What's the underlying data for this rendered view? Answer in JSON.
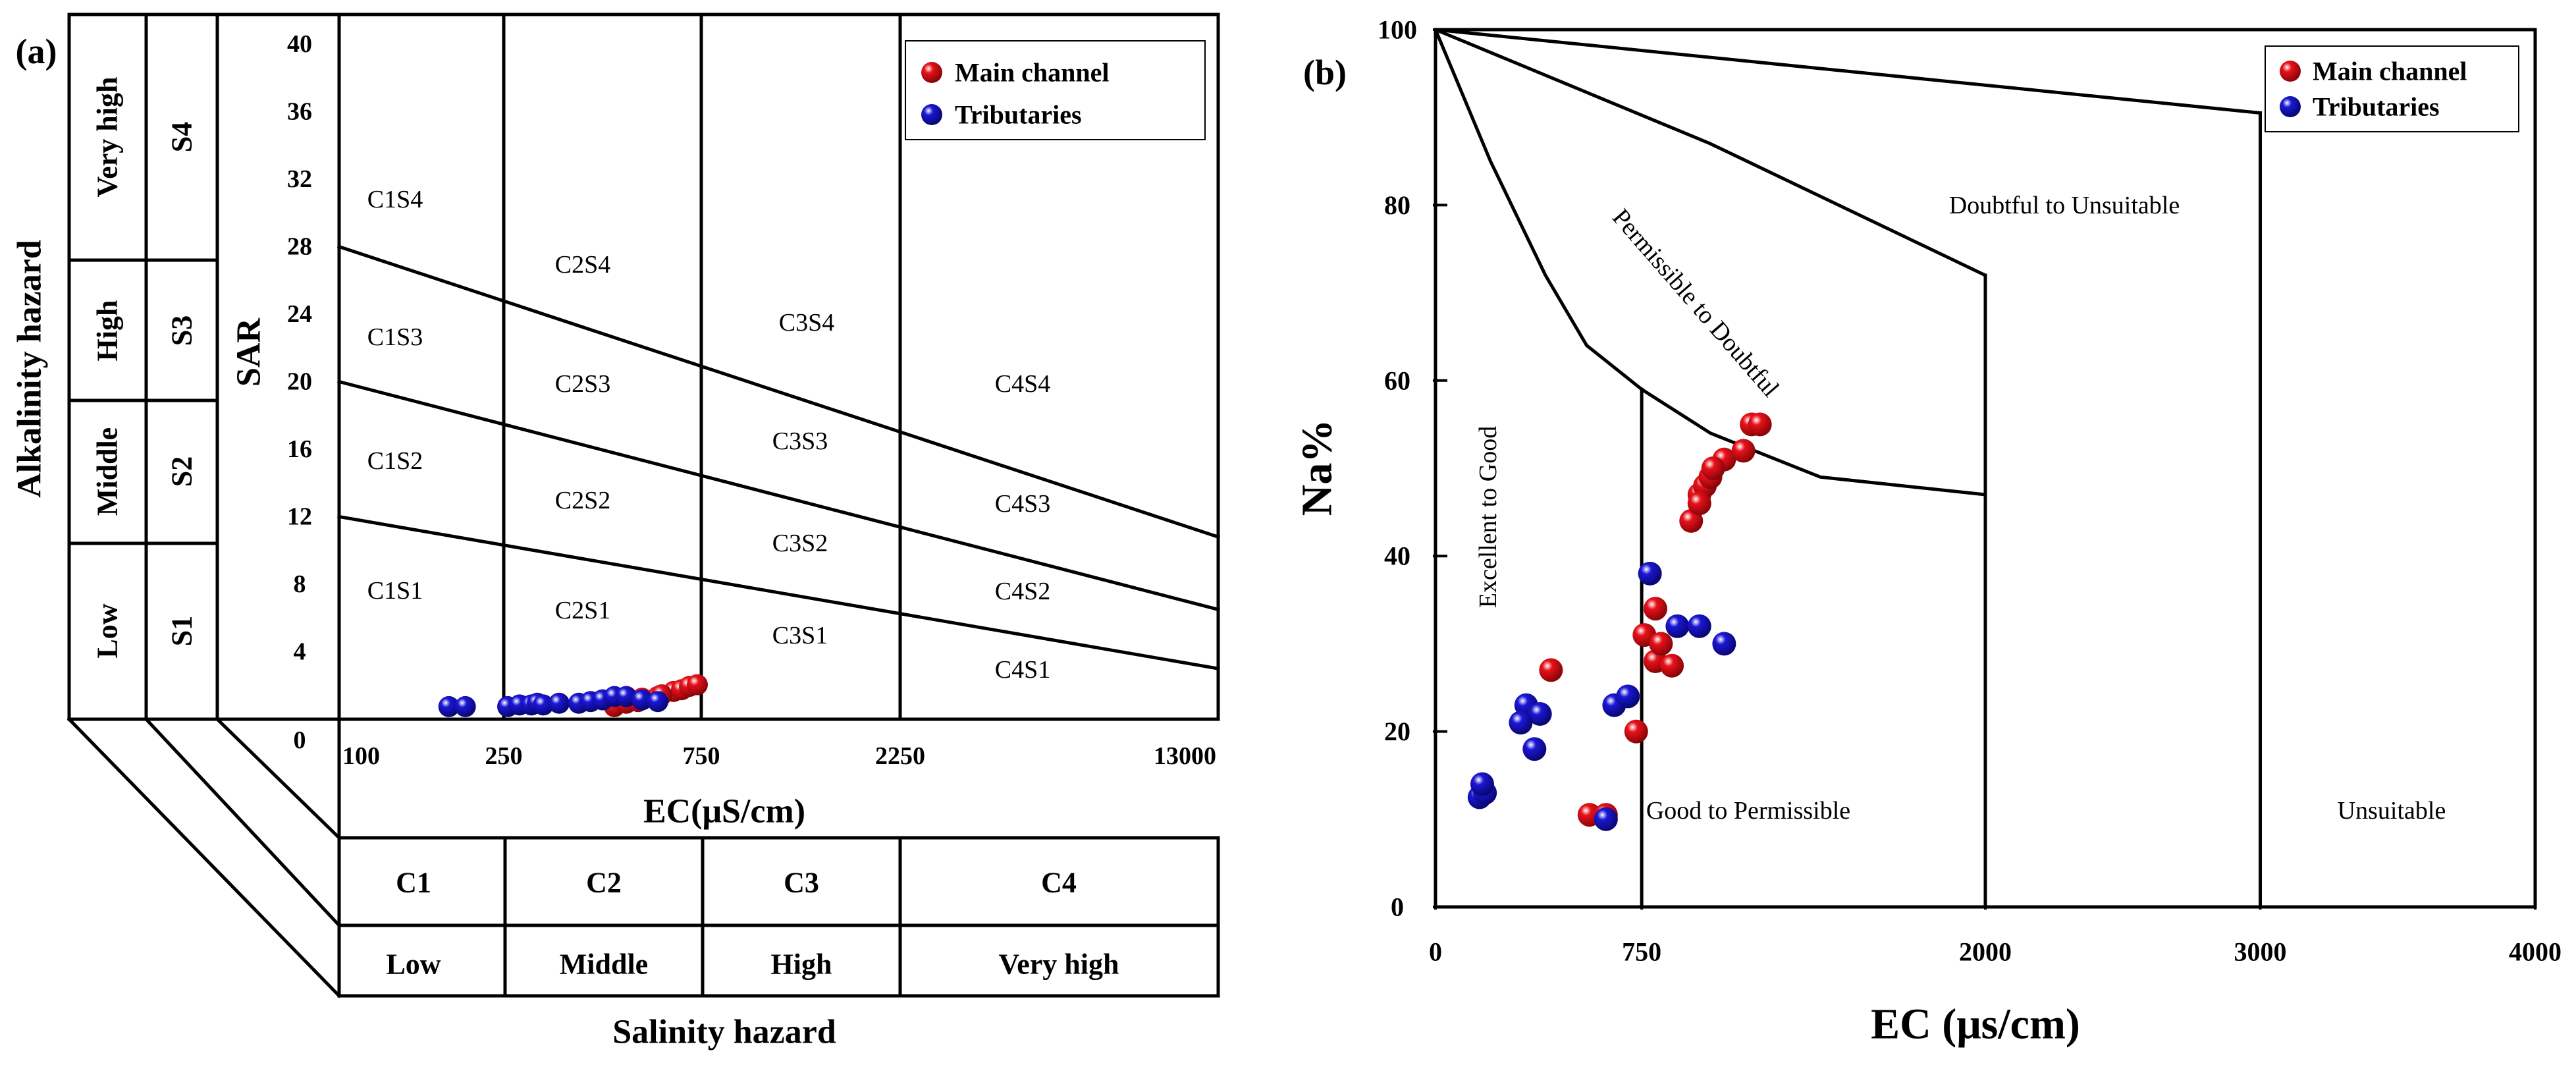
{
  "chart_data": [
    {
      "type": "scatter",
      "panel_label": "(a)",
      "title": "",
      "xlabel": "EC(μS/cm)",
      "ylabel": "SAR",
      "x_scale": "piecewise",
      "x_tick_labels": [
        "100",
        "250",
        "750",
        "2250",
        "13000"
      ],
      "y_tick_labels": [
        "0",
        "4",
        "8",
        "12",
        "16",
        "20",
        "24",
        "28",
        "32",
        "36",
        "40"
      ],
      "ylim": [
        0,
        42
      ],
      "legend": [
        "Main channel",
        "Tributaries"
      ],
      "legend_position": "top-right",
      "colors": {
        "main_channel": "#e8111a",
        "tributaries": "#1b17d6",
        "line": "#000000"
      },
      "boundary_lines": [
        {
          "label": "S1/S2",
          "sar_at_100": 12,
          "sar_at_13000": 3
        },
        {
          "label": "S2/S3",
          "sar_at_100": 20,
          "sar_at_13000": 6.5
        },
        {
          "label": "S3/S4",
          "sar_at_100": 28,
          "sar_at_13000": 10.8
        }
      ],
      "region_labels": [
        "C1S4",
        "C1S3",
        "C1S2",
        "C1S1",
        "C2S4",
        "C2S3",
        "C2S2",
        "C2S1",
        "C3S4",
        "C3S3",
        "C3S2",
        "C3S1",
        "C4S4",
        "C4S3",
        "C4S2",
        "C4S1"
      ],
      "alkalinity_title": "Alkalinity hazard",
      "alkalinity_classes": [
        {
          "code": "S4",
          "name": "Very high"
        },
        {
          "code": "S3",
          "name": "High"
        },
        {
          "code": "S2",
          "name": "Middle"
        },
        {
          "code": "S1",
          "name": "Low"
        }
      ],
      "salinity_title": "Salinity hazard",
      "salinity_classes": [
        {
          "code": "C1",
          "name": "Low"
        },
        {
          "code": "C2",
          "name": "Middle"
        },
        {
          "code": "C3",
          "name": "High"
        },
        {
          "code": "C4",
          "name": "Very high"
        }
      ],
      "series": [
        {
          "name": "Main channel",
          "points": [
            [
              530,
              0.2
            ],
            [
              560,
              0.4
            ],
            [
              600,
              0.7
            ],
            [
              640,
              0.8
            ],
            [
              680,
              1.1
            ],
            [
              700,
              1.2
            ],
            [
              650,
              0.9
            ],
            [
              720,
              1.4
            ],
            [
              740,
              1.5
            ],
            [
              590,
              0.5
            ]
          ]
        },
        {
          "name": "Tributaries",
          "points": [
            [
              200,
              0.2
            ],
            [
              215,
              0.2
            ],
            [
              260,
              0.2
            ],
            [
              290,
              0.3
            ],
            [
              320,
              0.3
            ],
            [
              335,
              0.4
            ],
            [
              350,
              0.3
            ],
            [
              390,
              0.4
            ],
            [
              440,
              0.4
            ],
            [
              470,
              0.5
            ],
            [
              500,
              0.6
            ],
            [
              530,
              0.8
            ],
            [
              560,
              0.8
            ],
            [
              600,
              0.6
            ],
            [
              640,
              0.5
            ]
          ]
        }
      ]
    },
    {
      "type": "scatter",
      "panel_label": "(b)",
      "title": "",
      "xlabel": "EC (μs/cm)",
      "ylabel": "Na%",
      "xlim": [
        0,
        4000
      ],
      "ylim": [
        0,
        100
      ],
      "x_tick_labels": [
        "0",
        "750",
        "2000",
        "3000",
        "4000"
      ],
      "y_tick_labels": [
        "0",
        "20",
        "40",
        "60",
        "80",
        "100"
      ],
      "legend": [
        "Main channel",
        "Tributaries"
      ],
      "legend_position": "top-right",
      "colors": {
        "main_channel": "#e8111a",
        "tributaries": "#1b17d6",
        "line": "#000000"
      },
      "region_labels": [
        "Excellent to Good",
        "Permissible to Doubtful",
        "Doubtful to Unsuitable",
        "Good to Permissible",
        "Unsuitable"
      ],
      "boundary_curves": {
        "inner": [
          [
            0,
            100
          ],
          [
            200,
            85
          ],
          [
            400,
            72
          ],
          [
            550,
            64
          ],
          [
            750,
            59
          ],
          [
            1000,
            54
          ],
          [
            1400,
            49
          ],
          [
            2000,
            47
          ]
        ],
        "middle": [
          [
            0,
            100
          ],
          [
            1000,
            87
          ],
          [
            2000,
            72
          ]
        ],
        "outer": [
          [
            0,
            100
          ],
          [
            3000,
            90.5
          ]
        ],
        "verticals": [
          {
            "x": 750,
            "top": 59
          },
          {
            "x": 2000,
            "top": 72
          },
          {
            "x": 3000,
            "top": 90.5
          }
        ]
      },
      "series": [
        {
          "name": "Main channel",
          "points": [
            [
              560,
              10.5
            ],
            [
              620,
              10.5
            ],
            [
              730,
              20
            ],
            [
              420,
              27
            ],
            [
              800,
              28
            ],
            [
              860,
              27.5
            ],
            [
              760,
              31
            ],
            [
              820,
              30
            ],
            [
              800,
              34
            ],
            [
              930,
              44
            ],
            [
              960,
              47
            ],
            [
              980,
              48
            ],
            [
              1000,
              49
            ],
            [
              1050,
              51
            ],
            [
              1120,
              52
            ],
            [
              1150,
              55
            ],
            [
              1180,
              55
            ],
            [
              960,
              46
            ],
            [
              1010,
              50
            ]
          ]
        },
        {
          "name": "Tributaries",
          "points": [
            [
              160,
              12.5
            ],
            [
              180,
              13
            ],
            [
              170,
              14
            ],
            [
              620,
              10
            ],
            [
              330,
              23
            ],
            [
              380,
              22
            ],
            [
              310,
              21
            ],
            [
              360,
              18
            ],
            [
              650,
              23
            ],
            [
              700,
              24
            ],
            [
              780,
              38
            ],
            [
              880,
              32
            ],
            [
              960,
              32
            ],
            [
              1050,
              30
            ]
          ]
        }
      ]
    }
  ]
}
